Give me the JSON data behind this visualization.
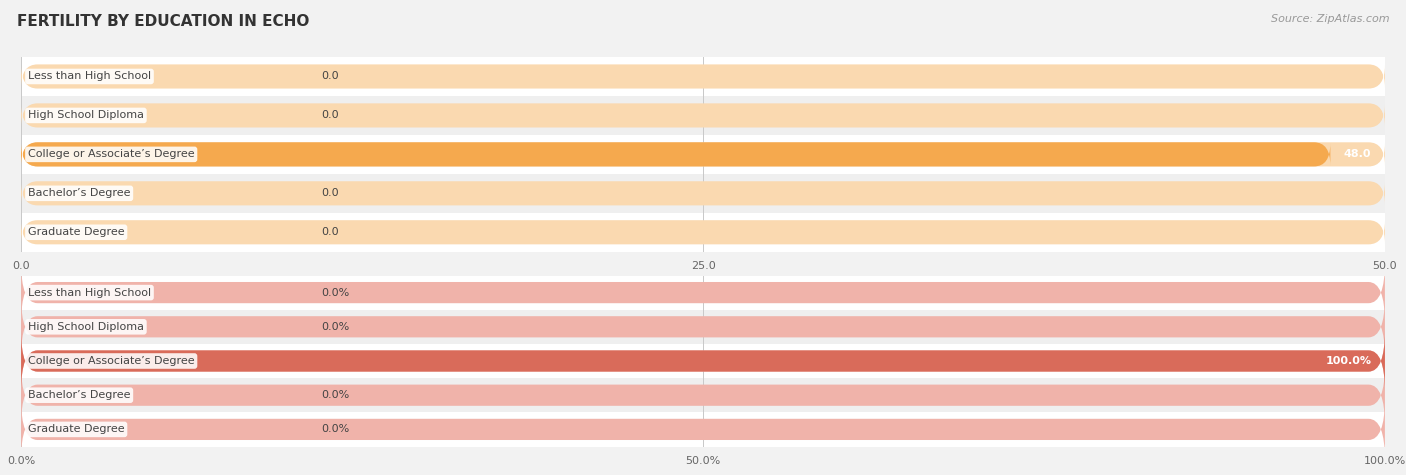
{
  "title": "FERTILITY BY EDUCATION IN ECHO",
  "source": "Source: ZipAtlas.com",
  "background_color": "#f2f2f2",
  "top_chart": {
    "categories": [
      "Less than High School",
      "High School Diploma",
      "College or Associate’s Degree",
      "Bachelor’s Degree",
      "Graduate Degree"
    ],
    "values": [
      0.0,
      0.0,
      48.0,
      0.0,
      0.0
    ],
    "xlim": [
      0,
      50
    ],
    "xticks": [
      0.0,
      25.0,
      50.0
    ],
    "xtick_labels": [
      "0.0",
      "25.0",
      "50.0"
    ],
    "bar_color": "#f5a94e",
    "bar_bg_color": "#fad9b0",
    "label_color": "#444444",
    "bar_height": 0.62
  },
  "bottom_chart": {
    "categories": [
      "Less than High School",
      "High School Diploma",
      "College or Associate’s Degree",
      "Bachelor’s Degree",
      "Graduate Degree"
    ],
    "values": [
      0.0,
      0.0,
      100.0,
      0.0,
      0.0
    ],
    "xlim": [
      0,
      100
    ],
    "xticks": [
      0.0,
      50.0,
      100.0
    ],
    "xtick_labels": [
      "0.0%",
      "50.0%",
      "100.0%"
    ],
    "bar_color": "#d96b5a",
    "bar_bg_color": "#f0b3aa",
    "label_color": "#444444",
    "bar_height": 0.62
  },
  "row_colors": [
    "#ffffff",
    "#efefef"
  ],
  "grid_color": "#c8c8c8",
  "title_color": "#333333",
  "source_color": "#999999",
  "tick_color": "#666666",
  "title_fontsize": 11,
  "source_fontsize": 8,
  "label_fontsize": 8,
  "value_fontsize": 8,
  "tick_fontsize": 8
}
